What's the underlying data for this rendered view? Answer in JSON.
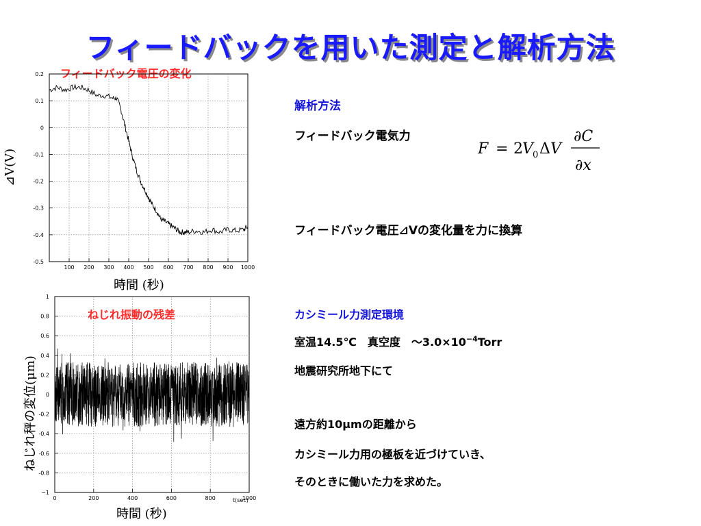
{
  "slide": {
    "title": "フィードバックを用いた測定と解析方法"
  },
  "right": {
    "analysis_heading": "解析方法",
    "feedback_force_label": "フィードバック電気力",
    "formula": {
      "F": "F",
      "eq": "=",
      "coef": "2",
      "V": "V",
      "sub0": "0",
      "delta": "Δ",
      "V2": "V",
      "dC": "∂C",
      "dx": "∂x"
    },
    "convert_text": "フィードバック電圧⊿Vの変化量を力に換算",
    "env_heading": "カシミール力測定環境",
    "env_line1_prefix": "室温14.5℃　真空度　～3.0×10",
    "env_line1_sup": "−4",
    "env_line1_suffix": "Torr",
    "env_line2": "地震研究所地下にて",
    "method_line1": "遠方約10μmの距離から",
    "method_line2": "カシミール力用の極板を近づけていき、",
    "method_line3": "そのときに働いた力を求めた。"
  },
  "colors": {
    "title": "#1a1aff",
    "accent_blue": "#1414d8",
    "label_red": "#ff2a2a"
  },
  "chart_data": [
    {
      "type": "line",
      "title": "フィードバック電圧の変化",
      "xlabel": "時間 (秒)",
      "ylabel": "⊿V(V)",
      "xlim": [
        0,
        1000
      ],
      "ylim": [
        -0.5,
        0.2
      ],
      "x_ticks": [
        100,
        200,
        300,
        400,
        500,
        600,
        700,
        800,
        900,
        1000
      ],
      "y_ticks": [
        "0.2",
        "0.1",
        "0",
        "-0.1",
        "-0.2",
        "-0.3",
        "-0.4",
        "-0.5"
      ],
      "grid": true,
      "series": [
        {
          "x": [
            0,
            40,
            80,
            120,
            160,
            200,
            240,
            280,
            320,
            340,
            360,
            380,
            400,
            420,
            440,
            460,
            480,
            500,
            520,
            540,
            560,
            580,
            600,
            620,
            640,
            660,
            680,
            700,
            740,
            780,
            820,
            860,
            900,
            940,
            980,
            1000
          ],
          "values": [
            0.14,
            0.15,
            0.14,
            0.15,
            0.15,
            0.14,
            0.12,
            0.12,
            0.11,
            0.11,
            0.07,
            0.01,
            -0.05,
            -0.11,
            -0.16,
            -0.2,
            -0.23,
            -0.26,
            -0.29,
            -0.31,
            -0.34,
            -0.35,
            -0.36,
            -0.37,
            -0.38,
            -0.39,
            -0.39,
            -0.39,
            -0.385,
            -0.39,
            -0.38,
            -0.39,
            -0.38,
            -0.385,
            -0.38,
            -0.37
          ]
        }
      ]
    },
    {
      "type": "line",
      "title": "ねじれ振動の残差",
      "xlabel": "時間 (秒)",
      "ylabel": "ねじれ秤の変位(μm)",
      "x_axis_unit_label": "t(sec)",
      "xlim": [
        0,
        1000
      ],
      "ylim": [
        -1,
        1
      ],
      "x_ticks": [
        0,
        200,
        400,
        600,
        800,
        1000
      ],
      "y_ticks": [
        "1",
        "0.8",
        "0.6",
        "0.4",
        "0.2",
        "0",
        "-0.2",
        "-0.4",
        "-0.6",
        "-0.8",
        "−1"
      ],
      "grid": true,
      "series": [
        {
          "x": [
            0,
            1000
          ],
          "values": [
            0.0,
            0.0
          ],
          "amplitude_envelope": [
            -0.6,
            0.6
          ]
        }
      ]
    }
  ]
}
